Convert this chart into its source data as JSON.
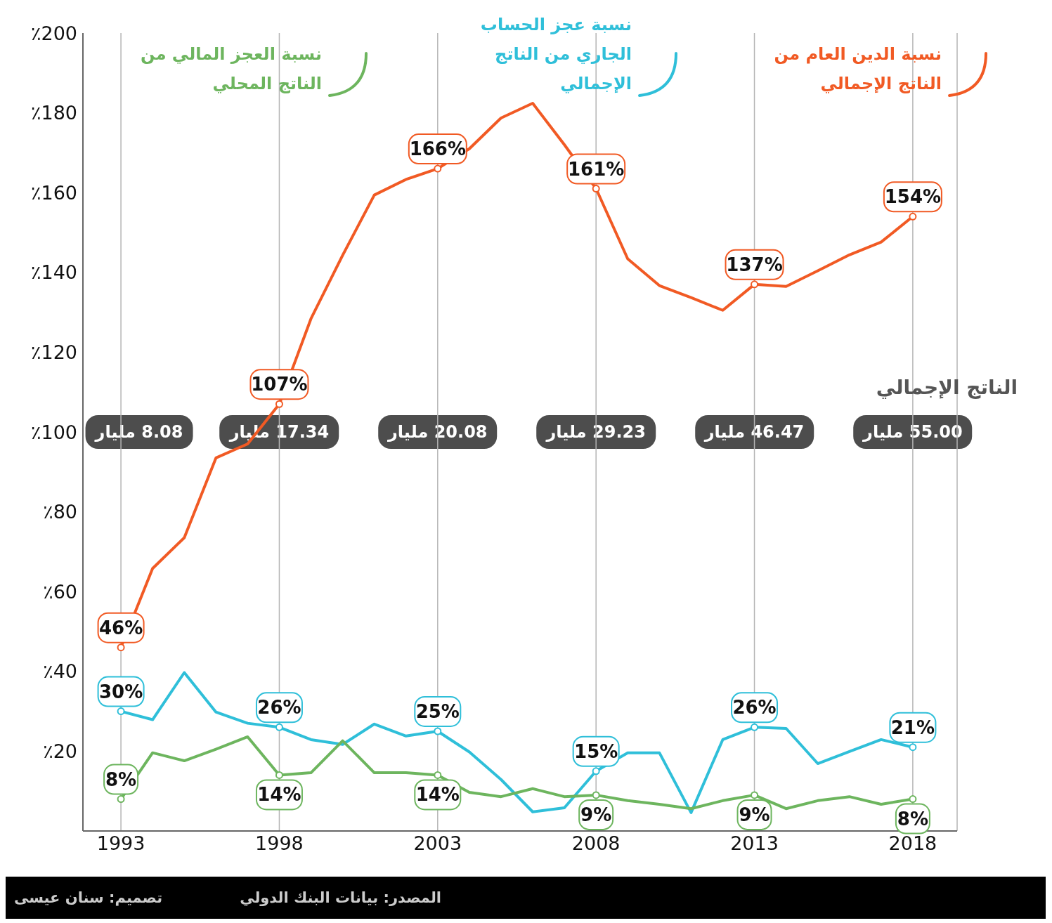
{
  "chart_data": {
    "type": "line",
    "x": [
      1993,
      1994,
      1995,
      1996,
      1997,
      1998,
      1999,
      2000,
      2001,
      2002,
      2003,
      2004,
      2005,
      2006,
      2007,
      2008,
      2009,
      2010,
      2011,
      2012,
      2013,
      2014,
      2015,
      2016,
      2017,
      2018
    ],
    "series": [
      {
        "name": "نسبة الدين العام من الناتج الإجمالي",
        "color": "#f15a24",
        "values": [
          46,
          65.8,
          73.5,
          93.5,
          97,
          107,
          128.4,
          144.3,
          159.4,
          163.3,
          166,
          171,
          178.7,
          182.4,
          172,
          161,
          143.4,
          136.7,
          133.7,
          130.5,
          137,
          136.5,
          140.4,
          144.4,
          147.6,
          154
        ],
        "value_labels": [
          "46%",
          null,
          null,
          null,
          null,
          "107%",
          null,
          null,
          null,
          null,
          "166%",
          null,
          null,
          null,
          null,
          "161%",
          null,
          null,
          null,
          null,
          "137%",
          null,
          null,
          null,
          null,
          "154%"
        ]
      },
      {
        "name": "نسبة عجز الحساب الجاري من الناتج الإجمالي",
        "color": "#2fbfd9",
        "values": [
          30,
          27.9,
          39.7,
          29.8,
          27,
          26,
          22.9,
          21.7,
          26.8,
          23.8,
          25,
          19.8,
          12.9,
          4.8,
          5.8,
          15,
          19.6,
          19.6,
          4.6,
          22.9,
          26,
          25.7,
          16.9,
          19.9,
          22.9,
          21
        ],
        "value_labels": [
          "30%",
          null,
          null,
          null,
          null,
          "26%",
          null,
          null,
          null,
          null,
          "25%",
          null,
          null,
          null,
          null,
          "15%",
          null,
          null,
          null,
          null,
          "26%",
          null,
          null,
          null,
          null,
          "21%"
        ]
      },
      {
        "name": "نسبة العجز المالي من الناتج المحلي",
        "color": "#6db55e",
        "values": [
          8,
          19.6,
          17.6,
          20.5,
          23.6,
          14,
          14.6,
          22.6,
          14.6,
          14.6,
          14,
          9.7,
          8.6,
          10.6,
          8.6,
          9,
          7.6,
          6.7,
          5.6,
          7.6,
          9,
          5.6,
          7.6,
          8.6,
          6.7,
          8
        ],
        "value_labels": [
          "8%",
          null,
          null,
          null,
          null,
          "14%",
          null,
          null,
          null,
          null,
          "14%",
          null,
          null,
          null,
          null,
          "9%",
          null,
          null,
          null,
          null,
          "9%",
          null,
          null,
          null,
          null,
          "8%"
        ]
      }
    ],
    "xlim": [
      1991.8,
      2019.4
    ],
    "xticks": [
      1993,
      1998,
      2003,
      2008,
      2013,
      2018
    ],
    "ylim": [
      0,
      200
    ],
    "yticks": [
      {
        "value": 0,
        "label": null
      },
      {
        "value": 20,
        "label": "٪20"
      },
      {
        "value": 40,
        "label": "٪40"
      },
      {
        "value": 60,
        "label": "٪60"
      },
      {
        "value": 80,
        "label": "٪80"
      },
      {
        "value": 100,
        "label": "٪100"
      },
      {
        "value": 120,
        "label": "٪120"
      },
      {
        "value": 140,
        "label": "٪140"
      },
      {
        "value": 160,
        "label": "٪160"
      },
      {
        "value": 180,
        "label": "٪180"
      },
      {
        "value": 200,
        "label": "٪200"
      }
    ],
    "grid": "x",
    "legend": "top",
    "line_style": "solid",
    "annotations": [
      "الناتج الإجمالي",
      "8.08 مليار",
      "17.34 مليار",
      "20.08 مليار",
      "29.23 مليار",
      "46.47 مليار",
      "55.00 مليار",
      "المصدر: بيانات البنك الدولي",
      "تصميم: سنان عيسى"
    ]
  }
}
